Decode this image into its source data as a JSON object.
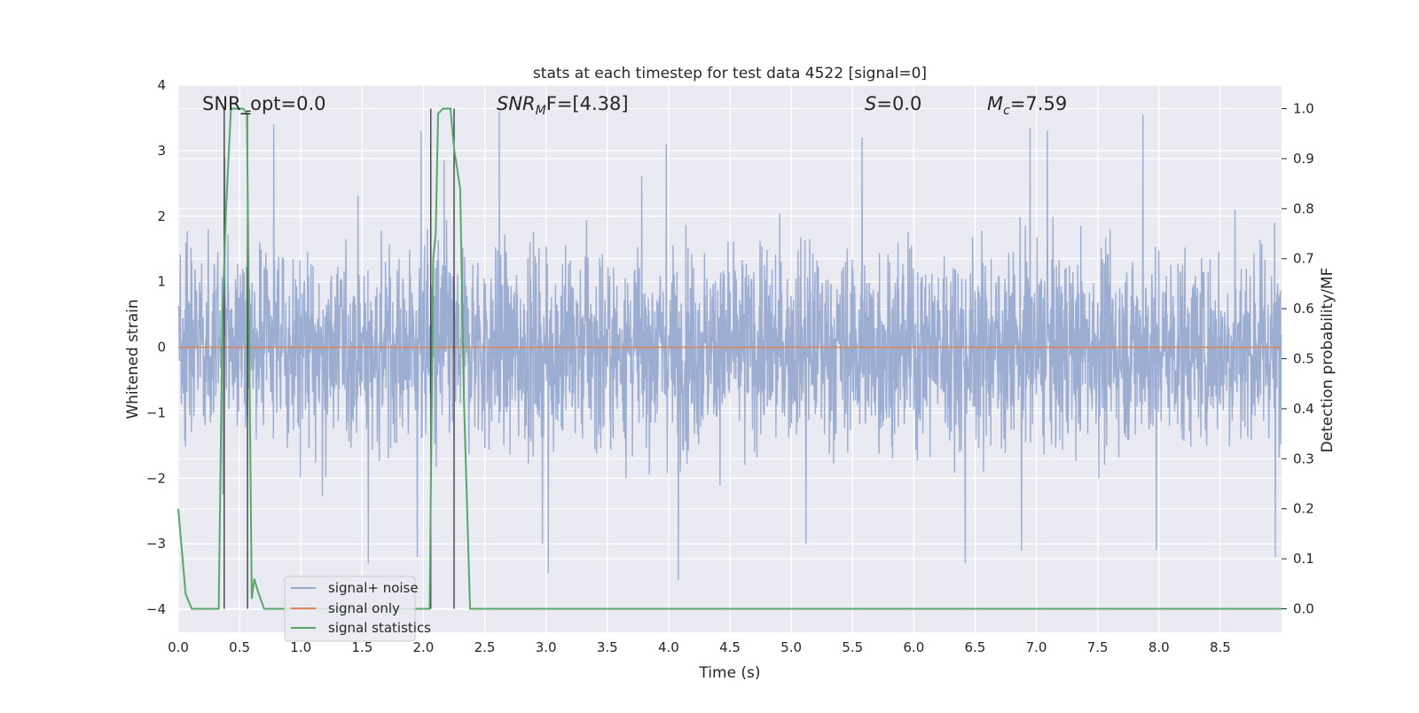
{
  "chart_data": {
    "type": "line",
    "title": "stats at each timestep for test data 4522 [signal=0]",
    "xlabel": "Time (s)",
    "ylabel": "Whitened strain",
    "y2label": "Detection probability/MF",
    "xlim": [
      0.0,
      9.0
    ],
    "ylim": [
      -4.35,
      4.0
    ],
    "y2lim": [
      -0.047,
      1.047
    ],
    "xticks": [
      "0.0",
      "0.5",
      "1.0",
      "1.5",
      "2.0",
      "2.5",
      "3.0",
      "3.5",
      "4.0",
      "4.5",
      "5.0",
      "5.5",
      "6.0",
      "6.5",
      "7.0",
      "7.5",
      "8.0",
      "8.5"
    ],
    "xtick_values": [
      0.0,
      0.5,
      1.0,
      1.5,
      2.0,
      2.5,
      3.0,
      3.5,
      4.0,
      4.5,
      5.0,
      5.5,
      6.0,
      6.5,
      7.0,
      7.5,
      8.0,
      8.5
    ],
    "yticks": [
      "−4",
      "−3",
      "−2",
      "−1",
      "0",
      "1",
      "2",
      "3",
      "4"
    ],
    "ytick_values": [
      -4,
      -3,
      -2,
      -1,
      0,
      1,
      2,
      3,
      4
    ],
    "y2ticks": [
      "0.0",
      "0.1",
      "0.2",
      "0.3",
      "0.4",
      "0.5",
      "0.6",
      "0.7",
      "0.8",
      "0.9",
      "1.0"
    ],
    "y2tick_values": [
      0.0,
      0.1,
      0.2,
      0.3,
      0.4,
      0.5,
      0.6,
      0.7,
      0.8,
      0.9,
      1.0
    ],
    "grid": true,
    "legend_position": "lower-left",
    "background": "#eaeaf2",
    "colors": {
      "noise": "#98aad0",
      "signal": "#dd8452",
      "stats": "#55a868",
      "markers": "#333333"
    },
    "annotations": {
      "snr_opt": "SNR_opt=0.0",
      "snr_mf_prefix": "SNR",
      "snr_mf_sub": "M",
      "snr_mf_suffix": "F=[4.38]",
      "s_prefix": "S",
      "s_suffix": "=0.0",
      "mc_prefix": "M",
      "mc_sub": "c",
      "mc_suffix": "=7.59"
    },
    "series": [
      {
        "name": "signal+ noise",
        "axis": "left",
        "description_envelope": {
          "typical_high": 1.35,
          "typical_low": -1.35,
          "peak_high": 3.65,
          "peak_low": -3.6
        },
        "spikes": [
          [
            0.38,
            2.9
          ],
          [
            0.78,
            3.4
          ],
          [
            1.98,
            3.3
          ],
          [
            2.62,
            3.6
          ],
          [
            2.17,
            2.85
          ],
          [
            3.98,
            3.1
          ],
          [
            5.58,
            3.2
          ],
          [
            6.95,
            3.35
          ],
          [
            7.09,
            3.3
          ],
          [
            7.87,
            3.55
          ],
          [
            8.62,
            2.1
          ],
          [
            1.95,
            -3.2
          ],
          [
            1.55,
            -3.3
          ],
          [
            3.02,
            -3.45
          ],
          [
            4.08,
            -3.55
          ],
          [
            6.42,
            -3.3
          ],
          [
            6.88,
            -3.1
          ],
          [
            7.98,
            -3.1
          ],
          [
            8.95,
            -3.2
          ],
          [
            2.97,
            -3.0
          ],
          [
            5.12,
            -3.0
          ]
        ]
      },
      {
        "name": "signal only",
        "axis": "left",
        "x": [
          0.0,
          9.0
        ],
        "y": [
          0.0,
          0.0
        ]
      },
      {
        "name": "signal statistics",
        "axis": "right",
        "x": [
          0.0,
          0.06,
          0.11,
          0.18,
          0.25,
          0.31,
          0.33,
          0.36,
          0.39,
          0.43,
          0.47,
          0.53,
          0.56,
          0.6,
          0.62,
          0.65,
          0.7,
          0.75,
          1.0,
          2.0,
          2.05,
          2.08,
          2.1,
          2.12,
          2.16,
          2.22,
          2.25,
          2.3,
          2.33,
          2.38,
          2.43,
          2.5,
          3.0,
          9.0
        ],
        "y": [
          0.2,
          0.03,
          0.0,
          0.0,
          0.0,
          0.0,
          0.0,
          0.58,
          0.8,
          1.0,
          1.0,
          1.0,
          0.99,
          0.02,
          0.06,
          0.035,
          0.0,
          0.0,
          0.0,
          0.0,
          0.0,
          0.7,
          0.75,
          0.99,
          1.0,
          1.0,
          0.92,
          0.84,
          0.42,
          0.0,
          0.0,
          0.0,
          0.0,
          0.0
        ]
      }
    ],
    "vertical_markers": [
      {
        "x": 0.375,
        "y1": 1.0
      },
      {
        "x": 0.565,
        "y1": 0.99
      },
      {
        "x": 2.06,
        "y1": 1.0
      },
      {
        "x": 2.25,
        "y1": 1.0
      }
    ],
    "marker_ticks": [
      {
        "x": 0.54,
        "x2": 0.59,
        "y": 0.995
      }
    ]
  },
  "legend": {
    "items": [
      {
        "label": "signal+ noise",
        "color": "#98aad0"
      },
      {
        "label": "signal only",
        "color": "#dd8452"
      },
      {
        "label": "signal statistics",
        "color": "#55a868"
      }
    ]
  }
}
